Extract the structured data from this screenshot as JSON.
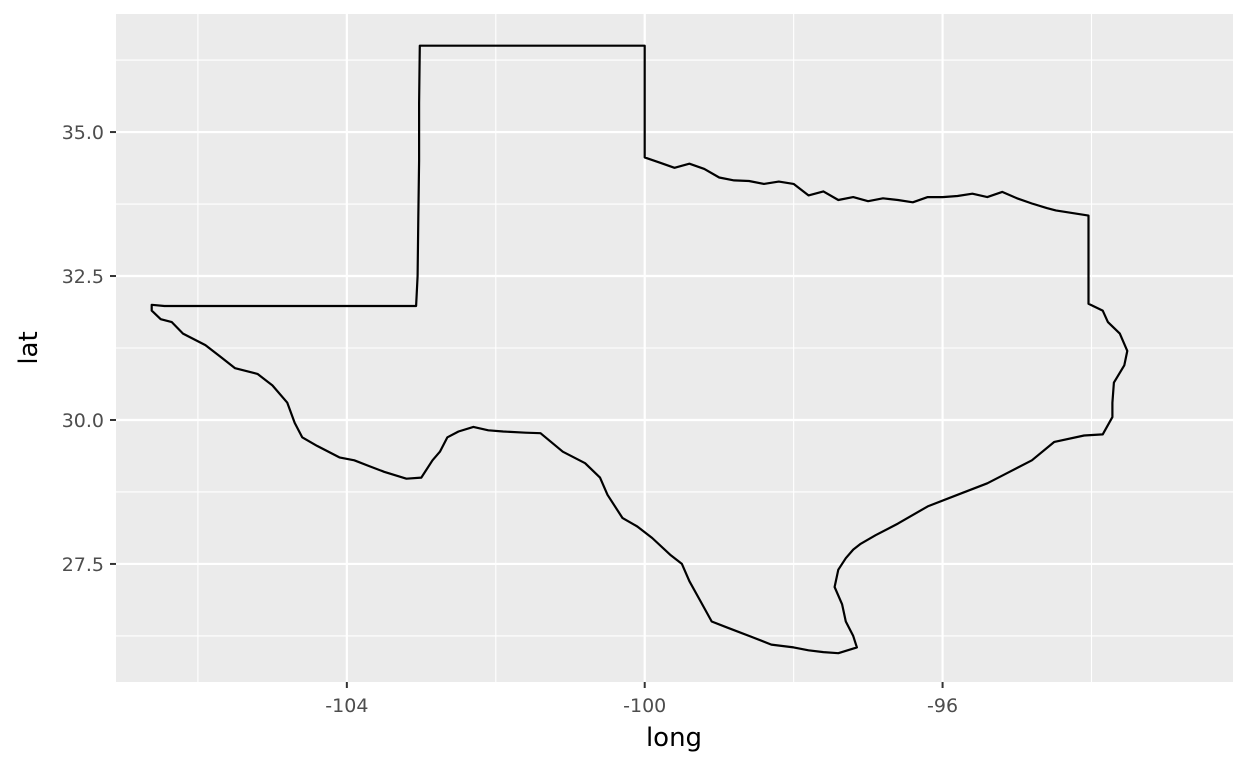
{
  "chart_data": {
    "type": "map",
    "xlabel": "long",
    "ylabel": "lat",
    "xlim": [
      -107.1,
      -92.1
    ],
    "ylim": [
      25.45,
      37.05
    ],
    "x_ticks": [
      -104,
      -100,
      -96
    ],
    "x_tick_labels": [
      "-104",
      "-100",
      "-96"
    ],
    "x_minor": [
      -106,
      -102,
      -98,
      -94
    ],
    "y_ticks": [
      27.5,
      30.0,
      32.5,
      35.0
    ],
    "y_tick_labels": [
      "27.5",
      "30.0",
      "32.5",
      "35.0"
    ],
    "y_minor": [
      26.25,
      28.75,
      31.25,
      33.75,
      36.25
    ],
    "grid": true,
    "panel_color": "#ebebeb",
    "grid_color": "#ffffff",
    "outline_color": "#000000",
    "regions": [
      {
        "region": "texas",
        "points": [
          [
            -106.45,
            31.98
          ],
          [
            -103.07,
            31.98
          ],
          [
            -103.05,
            32.5
          ],
          [
            -103.04,
            33.5
          ],
          [
            -103.03,
            34.5
          ],
          [
            -103.03,
            35.5
          ],
          [
            -103.02,
            36.5
          ],
          [
            -100.0,
            36.5
          ],
          [
            -100.0,
            35.8
          ],
          [
            -100.0,
            35.0
          ],
          [
            -100.0,
            34.56
          ],
          [
            -99.8,
            34.47
          ],
          [
            -99.6,
            34.38
          ],
          [
            -99.4,
            34.45
          ],
          [
            -99.2,
            34.36
          ],
          [
            -99.0,
            34.21
          ],
          [
            -98.8,
            34.16
          ],
          [
            -98.6,
            34.15
          ],
          [
            -98.4,
            34.1
          ],
          [
            -98.2,
            34.14
          ],
          [
            -98.0,
            34.1
          ],
          [
            -97.8,
            33.9
          ],
          [
            -97.6,
            33.97
          ],
          [
            -97.4,
            33.82
          ],
          [
            -97.2,
            33.87
          ],
          [
            -97.0,
            33.8
          ],
          [
            -96.8,
            33.85
          ],
          [
            -96.6,
            33.82
          ],
          [
            -96.4,
            33.78
          ],
          [
            -96.2,
            33.87
          ],
          [
            -96.0,
            33.87
          ],
          [
            -95.8,
            33.89
          ],
          [
            -95.6,
            33.93
          ],
          [
            -95.4,
            33.87
          ],
          [
            -95.2,
            33.96
          ],
          [
            -95.0,
            33.85
          ],
          [
            -94.8,
            33.76
          ],
          [
            -94.6,
            33.68
          ],
          [
            -94.48,
            33.64
          ],
          [
            -94.04,
            33.55
          ],
          [
            -94.04,
            33.0
          ],
          [
            -94.04,
            32.4
          ],
          [
            -94.04,
            32.02
          ],
          [
            -93.85,
            31.9
          ],
          [
            -93.78,
            31.7
          ],
          [
            -93.62,
            31.5
          ],
          [
            -93.52,
            31.2
          ],
          [
            -93.56,
            30.95
          ],
          [
            -93.7,
            30.65
          ],
          [
            -93.72,
            30.3
          ],
          [
            -93.72,
            30.05
          ],
          [
            -93.85,
            29.75
          ],
          [
            -94.1,
            29.73
          ],
          [
            -94.5,
            29.62
          ],
          [
            -94.8,
            29.3
          ],
          [
            -95.1,
            29.1
          ],
          [
            -95.4,
            28.9
          ],
          [
            -95.8,
            28.7
          ],
          [
            -96.2,
            28.5
          ],
          [
            -96.6,
            28.2
          ],
          [
            -96.9,
            28.0
          ],
          [
            -97.1,
            27.85
          ],
          [
            -97.2,
            27.75
          ],
          [
            -97.3,
            27.6
          ],
          [
            -97.4,
            27.4
          ],
          [
            -97.45,
            27.1
          ],
          [
            -97.35,
            26.8
          ],
          [
            -97.3,
            26.5
          ],
          [
            -97.2,
            26.25
          ],
          [
            -97.15,
            26.05
          ],
          [
            -97.4,
            25.95
          ],
          [
            -97.6,
            25.97
          ],
          [
            -97.8,
            26.0
          ],
          [
            -98.0,
            26.05
          ],
          [
            -98.3,
            26.1
          ],
          [
            -98.6,
            26.25
          ],
          [
            -98.9,
            26.4
          ],
          [
            -99.1,
            26.5
          ],
          [
            -99.25,
            26.85
          ],
          [
            -99.4,
            27.2
          ],
          [
            -99.5,
            27.5
          ],
          [
            -99.65,
            27.65
          ],
          [
            -99.9,
            27.95
          ],
          [
            -100.1,
            28.15
          ],
          [
            -100.3,
            28.3
          ],
          [
            -100.5,
            28.7
          ],
          [
            -100.6,
            29.0
          ],
          [
            -100.8,
            29.25
          ],
          [
            -101.1,
            29.45
          ],
          [
            -101.4,
            29.77
          ],
          [
            -101.6,
            29.78
          ],
          [
            -101.9,
            29.8
          ],
          [
            -102.1,
            29.82
          ],
          [
            -102.3,
            29.88
          ],
          [
            -102.5,
            29.8
          ],
          [
            -102.65,
            29.7
          ],
          [
            -102.75,
            29.45
          ],
          [
            -102.85,
            29.3
          ],
          [
            -103.0,
            29.0
          ],
          [
            -103.2,
            28.98
          ],
          [
            -103.5,
            29.1
          ],
          [
            -103.7,
            29.2
          ],
          [
            -103.9,
            29.3
          ],
          [
            -104.1,
            29.35
          ],
          [
            -104.4,
            29.55
          ],
          [
            -104.6,
            29.7
          ],
          [
            -104.7,
            29.95
          ],
          [
            -104.8,
            30.3
          ],
          [
            -105.0,
            30.6
          ],
          [
            -105.2,
            30.8
          ],
          [
            -105.5,
            30.9
          ],
          [
            -105.7,
            31.1
          ],
          [
            -105.9,
            31.3
          ],
          [
            -106.2,
            31.5
          ],
          [
            -106.35,
            31.7
          ],
          [
            -106.5,
            31.75
          ],
          [
            -106.62,
            31.9
          ],
          [
            -106.62,
            32.0
          ],
          [
            -106.45,
            31.98
          ]
        ]
      }
    ]
  }
}
